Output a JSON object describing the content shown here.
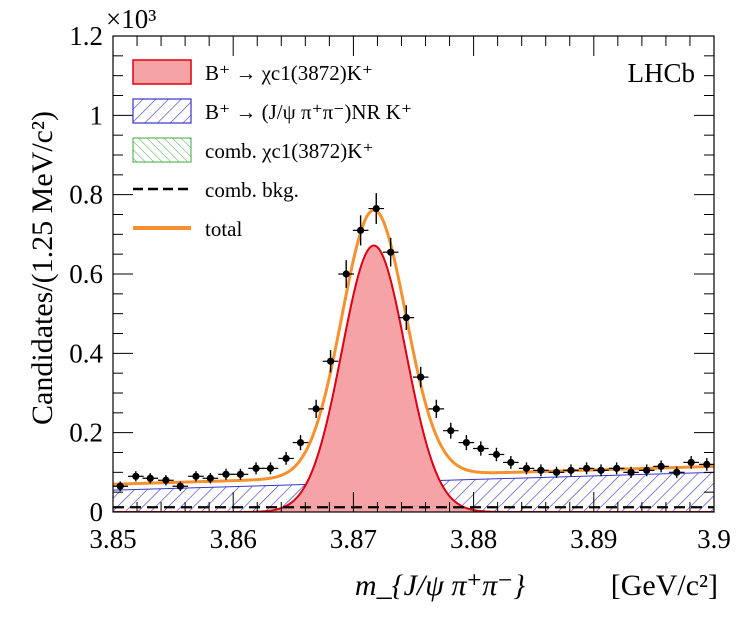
{
  "chart_data": {
    "type": "line",
    "experiment_label": "LHCb",
    "ylabel": "Candidates/(1.25 MeV/c²)",
    "xlabel": "m_{J/ψ π⁺π⁻}",
    "xunit": "[GeV/c²]",
    "multiplier": "×10³",
    "xlim": [
      3.85,
      3.9
    ],
    "ylim": [
      0,
      1.2
    ],
    "xticks": [
      3.85,
      3.86,
      3.87,
      3.88,
      3.89,
      3.9
    ],
    "xtick_labels": [
      "3.85",
      "3.86",
      "3.87",
      "3.88",
      "3.89",
      "3.9"
    ],
    "yticks": [
      0,
      0.2,
      0.4,
      0.6,
      0.8,
      1,
      1.2
    ],
    "ytick_labels": [
      "0",
      "0.2",
      "0.4",
      "0.6",
      "0.8",
      "1",
      "1.2"
    ],
    "legend_position": "top-left",
    "colors": {
      "signal_fill": "#f5a3a6",
      "signal_line": "#dd0010",
      "nonres": "#3636c8",
      "comb_chic": "#3fa83f",
      "comb_bkg": "#000000",
      "total": "#f5922f",
      "data": "#000000"
    },
    "legend": [
      {
        "key": "signal",
        "text": "B⁺ → χc1(3872)K⁺"
      },
      {
        "key": "nonres",
        "text": "B⁺ → (J/ψ π⁺π⁻)NR K⁺"
      },
      {
        "key": "comb_chic",
        "text": "comb. χc1(3872)K⁺"
      },
      {
        "key": "comb_bkg",
        "text": "comb. bkg."
      },
      {
        "key": "total",
        "text": "total"
      }
    ],
    "data_points": {
      "name": "data",
      "x": [
        3.8506,
        3.8519,
        3.8531,
        3.8544,
        3.8556,
        3.8569,
        3.8581,
        3.8594,
        3.8606,
        3.8619,
        3.8631,
        3.8644,
        3.8656,
        3.8669,
        3.8681,
        3.8694,
        3.8706,
        3.8719,
        3.8731,
        3.8744,
        3.8756,
        3.8769,
        3.8781,
        3.8794,
        3.8806,
        3.8819,
        3.8831,
        3.8844,
        3.8856,
        3.8869,
        3.8881,
        3.8894,
        3.8906,
        3.8919,
        3.8931,
        3.8944,
        3.8956,
        3.8969,
        3.8981,
        3.8994
      ],
      "y": [
        0.065,
        0.09,
        0.085,
        0.08,
        0.065,
        0.09,
        0.085,
        0.095,
        0.095,
        0.11,
        0.11,
        0.135,
        0.175,
        0.26,
        0.38,
        0.6,
        0.71,
        0.765,
        0.655,
        0.49,
        0.34,
        0.26,
        0.205,
        0.175,
        0.16,
        0.145,
        0.125,
        0.11,
        0.105,
        0.1,
        0.105,
        0.11,
        0.105,
        0.11,
        0.1,
        0.105,
        0.115,
        0.1,
        0.125,
        0.12
      ],
      "yerr": [
        0.012,
        0.013,
        0.013,
        0.013,
        0.012,
        0.013,
        0.013,
        0.014,
        0.014,
        0.015,
        0.015,
        0.016,
        0.019,
        0.023,
        0.028,
        0.035,
        0.038,
        0.039,
        0.036,
        0.031,
        0.026,
        0.023,
        0.02,
        0.019,
        0.018,
        0.017,
        0.016,
        0.015,
        0.015,
        0.014,
        0.015,
        0.015,
        0.015,
        0.015,
        0.014,
        0.015,
        0.015,
        0.014,
        0.016,
        0.016
      ]
    },
    "signal_model": {
      "mean": 3.8717,
      "sigma": 0.00265,
      "peak": 0.672
    },
    "nonres_model": {
      "at_xmin": 0.055,
      "at_xmax": 0.1
    },
    "comb_bkg_level": 0.012,
    "comb_chic_level": 0.003
  }
}
